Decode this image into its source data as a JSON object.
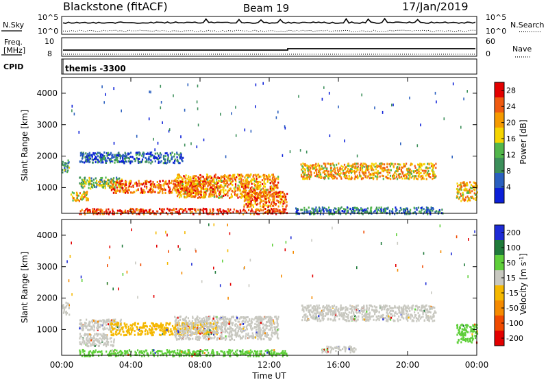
{
  "header": {
    "station": "Blackstone (fitACF)",
    "beam": "Beam 19",
    "date": "17/Jan/2019"
  },
  "noise_panel": {
    "left_label": "N.Sky",
    "right_label": "N.Search",
    "left_ticks": [
      "10^5",
      "10^0"
    ],
    "right_ticks": [
      "10^5",
      "10^0"
    ]
  },
  "freq_panel": {
    "left_label_1": "Freq.",
    "left_label_2": "[MHz]",
    "left_ticks": [
      "10",
      "8"
    ],
    "right_label": "Nave",
    "right_ticks": [
      "60",
      "0"
    ]
  },
  "cpid_panel": {
    "label": "CPID",
    "value": "themis -3300"
  },
  "chart_data": [
    {
      "type": "heatmap",
      "ylabel": "Slant Range [km]",
      "y_ticks": [
        1000,
        2000,
        3000,
        4000
      ],
      "ylim": [
        180,
        4500
      ],
      "x_ticks": [
        "00:00",
        "04:00",
        "08:00",
        "12:00",
        "16:00",
        "20:00",
        "00:00"
      ],
      "xlim_hours": [
        0,
        24
      ],
      "colorbar_label": "Power [dB]",
      "colorbar_ticks": [
        "4",
        "8",
        "12",
        "16",
        "20",
        "24",
        "28"
      ],
      "colorbar_range": [
        0,
        30
      ],
      "colors": [
        "#0b1fd8",
        "#2a5fbf",
        "#3c8f5a",
        "#52b64b",
        "#f5d400",
        "#f59a00",
        "#f05a10",
        "#e30000"
      ],
      "scatter_regions": [
        {
          "t": [
            0.0,
            0.4
          ],
          "r": [
            1500,
            1900
          ],
          "level": 0.35
        },
        {
          "t": [
            0.5,
            1.5
          ],
          "r": [
            600,
            900
          ],
          "level": 0.6
        },
        {
          "t": [
            1.0,
            3.5
          ],
          "r": [
            1000,
            1350
          ],
          "level": 0.45
        },
        {
          "t": [
            2.8,
            9.0
          ],
          "r": [
            850,
            1250
          ],
          "level": 0.8
        },
        {
          "t": [
            6.5,
            12.5
          ],
          "r": [
            700,
            1450
          ],
          "level": 0.7
        },
        {
          "t": [
            10.5,
            13.0
          ],
          "r": [
            400,
            900
          ],
          "level": 0.75
        },
        {
          "t": [
            1.0,
            13.0
          ],
          "r": [
            180,
            360
          ],
          "level": 0.9
        },
        {
          "t": [
            1.0,
            7.0
          ],
          "r": [
            1800,
            2150
          ],
          "level": 0.2
        },
        {
          "t": [
            13.8,
            21.6
          ],
          "r": [
            1300,
            1800
          ],
          "level": 0.65
        },
        {
          "t": [
            13.5,
            22.0
          ],
          "r": [
            180,
            400
          ],
          "level": 0.25
        },
        {
          "t": [
            22.8,
            24.0
          ],
          "r": [
            600,
            1200
          ],
          "level": 0.6
        }
      ]
    },
    {
      "type": "heatmap",
      "ylabel": "Slant Range [km]",
      "y_ticks": [
        1000,
        2000,
        3000,
        4000
      ],
      "ylim": [
        180,
        4500
      ],
      "x_ticks": [
        "00:00",
        "04:00",
        "08:00",
        "12:00",
        "16:00",
        "20:00",
        "00:00"
      ],
      "xlim_hours": [
        0,
        24
      ],
      "xlabel": "Time UT",
      "colorbar_label": "Velocity [m s^-1]",
      "colorbar_label_main": "Velocity [m s",
      "colorbar_label_sup": "-1",
      "colorbar_label_end": "]",
      "colorbar_ticks": [
        "200",
        "100",
        "50",
        "15",
        "-15",
        "-50",
        "-100",
        "-200"
      ],
      "colors": [
        "#1d2bd6",
        "#1f7a3a",
        "#5fcf3a",
        "#c8c8c0",
        "#f5b800",
        "#f58a00",
        "#f04a00",
        "#e30000"
      ],
      "scatter_regions": [
        {
          "t": [
            0.0,
            0.4
          ],
          "r": [
            1500,
            1900
          ],
          "c": "#c8c8c0"
        },
        {
          "t": [
            1.0,
            3.5
          ],
          "r": [
            1000,
            1350
          ],
          "c": "#c8c8c0"
        },
        {
          "t": [
            2.8,
            9.0
          ],
          "r": [
            850,
            1250
          ],
          "c": "#f5b800"
        },
        {
          "t": [
            6.5,
            12.5
          ],
          "r": [
            700,
            1450
          ],
          "c": "#c8c8c0"
        },
        {
          "t": [
            1.0,
            3.0
          ],
          "r": [
            500,
            900
          ],
          "c": "#c8c8c0"
        },
        {
          "t": [
            13.8,
            21.6
          ],
          "r": [
            1300,
            1800
          ],
          "c": "#c8c8c0"
        },
        {
          "t": [
            22.8,
            24.0
          ],
          "r": [
            600,
            1200
          ],
          "c": "#5fcf3a"
        },
        {
          "t": [
            1.0,
            13.0
          ],
          "r": [
            180,
            380
          ],
          "c": "#5fcf3a"
        },
        {
          "t": [
            15.0,
            17.0
          ],
          "r": [
            300,
            500
          ],
          "c": "#c8c8c0"
        }
      ]
    }
  ]
}
